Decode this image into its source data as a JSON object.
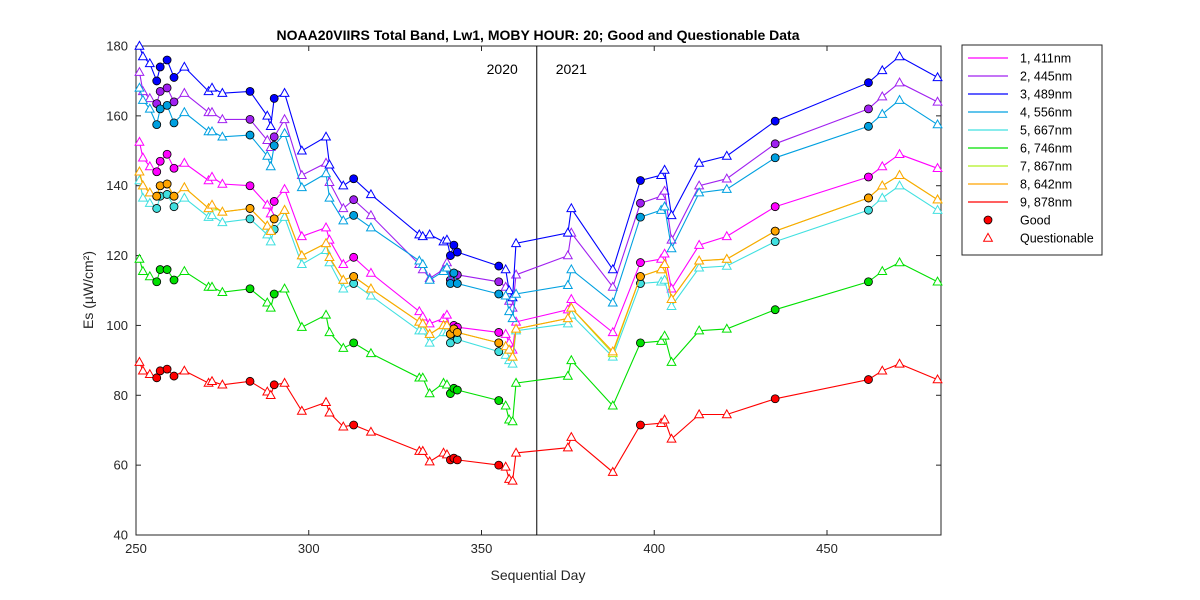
{
  "chart_data": {
    "type": "line",
    "title": "NOAA20VIIRS Total Band,  Lw1, MOBY HOUR: 20;  Good and Questionable Data",
    "xlabel": "Sequential Day",
    "ylabel": "Es (µW/cm²)",
    "xlim": [
      250,
      483
    ],
    "ylim": [
      40,
      180
    ],
    "xticks": [
      250,
      300,
      350,
      400,
      450
    ],
    "yticks": [
      40,
      60,
      80,
      100,
      120,
      140,
      160,
      180
    ],
    "grid": false,
    "legend_position": "outside-top-right",
    "annotations": [
      {
        "text": "2020",
        "x": 356,
        "y": 172
      },
      {
        "text": "2021",
        "x": 376,
        "y": 172
      }
    ],
    "year_divider_x": 366,
    "marker_legend": [
      {
        "label": "Good",
        "marker": "circle"
      },
      {
        "label": "Questionable",
        "marker": "triangle"
      }
    ],
    "flags": [
      0,
      0,
      0,
      1,
      1,
      1,
      1,
      0,
      0,
      0,
      0,
      1,
      0,
      0,
      1,
      0,
      0,
      0,
      0,
      0,
      1,
      0,
      0,
      0,
      0,
      0,
      0,
      1,
      1,
      1,
      1,
      0,
      0,
      0,
      0,
      0,
      0,
      0,
      1,
      0,
      0,
      0,
      0,
      0,
      1,
      1,
      0,
      0,
      0
    ],
    "series": [
      {
        "name": "1, 411nm",
        "color": "#ff00ff",
        "x": [
          251,
          252,
          254,
          256,
          257,
          259,
          261,
          264,
          271,
          272,
          275,
          283,
          288,
          289,
          290,
          293,
          298,
          305,
          306,
          310,
          313,
          318,
          332,
          333,
          335,
          339,
          340,
          341,
          342,
          343,
          355,
          357,
          358,
          359,
          360,
          375,
          376,
          388,
          396,
          402,
          403,
          405,
          413,
          421,
          435,
          462,
          466,
          471,
          482
        ],
        "y": [
          152.5,
          148,
          145.5,
          144,
          147,
          149,
          145,
          146.5,
          141.5,
          142.5,
          140.5,
          140,
          134.5,
          132,
          135.5,
          139,
          125.5,
          128,
          124.5,
          117.5,
          119.5,
          115,
          104,
          102.5,
          100.5,
          102,
          103,
          98.5,
          100,
          99.5,
          98,
          97.5,
          95,
          93,
          101,
          104.5,
          107.5,
          98,
          118,
          119,
          120.5,
          110.5,
          123,
          125.5,
          134,
          142.5,
          145.5,
          149,
          145
        ]
      },
      {
        "name": "2, 445nm",
        "color": "#a020f0",
        "x": [
          251,
          252,
          254,
          256,
          257,
          259,
          261,
          264,
          271,
          272,
          275,
          283,
          288,
          289,
          290,
          293,
          298,
          305,
          306,
          310,
          313,
          318,
          332,
          333,
          335,
          339,
          340,
          341,
          342,
          343,
          355,
          357,
          358,
          359,
          360,
          375,
          376,
          388,
          396,
          402,
          403,
          405,
          413,
          421,
          435,
          462,
          466,
          471,
          482
        ],
        "y": [
          172.5,
          167,
          165,
          163.5,
          167,
          168,
          164,
          166.5,
          161,
          161,
          159,
          159,
          153,
          151,
          154,
          159,
          143,
          146.5,
          141,
          133.5,
          136,
          131.5,
          117.5,
          116,
          113.5,
          116,
          118,
          113,
          115,
          114.5,
          112.5,
          111,
          107,
          105,
          114.5,
          120,
          126.5,
          111,
          135,
          137,
          138.5,
          124.5,
          140,
          142,
          152,
          162,
          165.5,
          169.5,
          164
        ]
      },
      {
        "name": "3, 489nm",
        "color": "#0000ff",
        "x": [
          251,
          252,
          254,
          256,
          257,
          259,
          261,
          264,
          271,
          272,
          275,
          283,
          288,
          289,
          290,
          293,
          298,
          305,
          306,
          310,
          313,
          318,
          332,
          333,
          335,
          339,
          340,
          341,
          342,
          343,
          355,
          357,
          358,
          359,
          360,
          375,
          376,
          388,
          396,
          402,
          403,
          405,
          413,
          421,
          435,
          462,
          466,
          471,
          482
        ],
        "y": [
          180,
          177,
          175,
          170,
          174,
          176,
          171,
          174,
          167,
          168,
          166.5,
          167,
          160,
          157,
          165,
          166.5,
          150,
          154,
          146,
          140,
          142,
          137.5,
          126,
          125.5,
          126,
          124,
          124.5,
          120,
          123,
          121,
          117,
          116,
          110,
          108,
          123.5,
          126.5,
          133.5,
          116,
          141.5,
          143,
          144.5,
          131.5,
          146.5,
          148.5,
          158.5,
          169.5,
          173,
          177,
          171
        ]
      },
      {
        "name": "4, 556nm",
        "color": "#00a0e0",
        "x": [
          251,
          252,
          254,
          256,
          257,
          259,
          261,
          264,
          271,
          272,
          275,
          283,
          288,
          289,
          290,
          293,
          298,
          305,
          306,
          310,
          313,
          318,
          332,
          333,
          335,
          339,
          340,
          341,
          342,
          343,
          355,
          357,
          358,
          359,
          360,
          375,
          376,
          388,
          396,
          402,
          403,
          405,
          413,
          421,
          435,
          462,
          466,
          471,
          482
        ],
        "y": [
          168,
          164.5,
          162,
          157.5,
          162,
          163,
          158,
          161,
          155.5,
          155.5,
          154,
          154.5,
          148.5,
          145.5,
          151.5,
          155,
          139.5,
          143.5,
          136.5,
          130,
          131.5,
          128,
          118.5,
          117.5,
          113,
          115.5,
          116.5,
          112,
          115,
          112,
          109,
          108.5,
          104,
          102,
          109,
          111.5,
          116,
          106.5,
          131,
          133,
          134,
          122,
          138,
          139,
          148,
          157,
          160.5,
          164.5,
          157.5
        ]
      },
      {
        "name": "5, 667nm",
        "color": "#40e0e0",
        "x": [
          251,
          252,
          254,
          256,
          257,
          259,
          261,
          264,
          271,
          272,
          275,
          283,
          288,
          289,
          290,
          293,
          298,
          305,
          306,
          310,
          313,
          318,
          332,
          333,
          335,
          339,
          340,
          341,
          342,
          343,
          355,
          357,
          358,
          359,
          360,
          375,
          376,
          388,
          396,
          402,
          403,
          405,
          413,
          421,
          435,
          462,
          466,
          471,
          482
        ],
        "y": [
          141.5,
          136.5,
          135,
          133.5,
          137,
          137.5,
          134,
          136.5,
          131,
          131.5,
          129.5,
          130.5,
          126,
          124,
          127.5,
          131,
          117.5,
          121.5,
          118,
          110.5,
          112,
          108.5,
          98.5,
          98.5,
          95,
          98,
          98,
          95,
          97.5,
          96,
          92.5,
          91.5,
          90,
          89,
          98.5,
          100.5,
          103,
          91,
          112,
          112.5,
          113,
          105.5,
          116.5,
          117,
          124,
          133,
          136.5,
          140,
          133
        ]
      },
      {
        "name": "6, 746nm",
        "color": "#00e000",
        "x": [
          251,
          252,
          254,
          256,
          257,
          259,
          261,
          264,
          271,
          272,
          275,
          283,
          288,
          289,
          290,
          293,
          298,
          305,
          306,
          310,
          313,
          318,
          332,
          333,
          335,
          339,
          340,
          341,
          342,
          343,
          355,
          357,
          358,
          359,
          360,
          375,
          376,
          388,
          396,
          402,
          403,
          405,
          413,
          421,
          435,
          462,
          466,
          471,
          482
        ],
        "y": [
          119,
          115.5,
          114,
          112.5,
          116,
          116,
          113,
          115.5,
          111,
          111,
          109.5,
          110.5,
          106.5,
          105,
          109,
          110.5,
          99.5,
          103,
          98,
          93.5,
          95,
          92,
          85,
          85,
          80.5,
          83.5,
          83,
          80.5,
          82,
          81.5,
          78.5,
          77,
          73,
          72.5,
          83.5,
          85.5,
          90,
          77,
          95,
          95.5,
          97,
          89.5,
          98.5,
          99,
          104.5,
          112.5,
          115.5,
          118,
          112.5
        ]
      },
      {
        "name": "7, 867nm",
        "color": "#b0f020",
        "x": [
          251,
          252,
          254,
          256,
          257,
          259,
          261,
          264,
          271,
          272,
          275,
          283,
          288,
          289,
          290,
          293,
          298,
          305,
          306,
          310,
          313,
          318,
          332,
          333,
          335,
          339,
          340,
          341,
          342,
          343,
          355,
          357,
          358,
          359,
          360,
          375,
          376,
          388,
          396,
          402,
          403,
          405,
          413,
          421,
          435,
          462,
          466,
          471,
          482
        ],
        "y": [
          144,
          140,
          138,
          137,
          140,
          140.5,
          137,
          139.5,
          133.5,
          134,
          132.5,
          133.5,
          128.5,
          127,
          130.5,
          133,
          120,
          123.5,
          119.5,
          113,
          114,
          110.5,
          101,
          100.5,
          97.5,
          100,
          100,
          97.5,
          99,
          98,
          95,
          94,
          93,
          91,
          99,
          102,
          105,
          92,
          114,
          116,
          117.5,
          107.5,
          118.5,
          119,
          127,
          136.5,
          140,
          143,
          136
        ]
      },
      {
        "name": "8, 642nm",
        "color": "#ffa500",
        "x": [
          251,
          252,
          254,
          256,
          257,
          259,
          261,
          264,
          271,
          272,
          275,
          283,
          288,
          289,
          290,
          293,
          298,
          305,
          306,
          310,
          313,
          318,
          332,
          333,
          335,
          339,
          340,
          341,
          342,
          343,
          355,
          357,
          358,
          359,
          360,
          375,
          376,
          388,
          396,
          402,
          403,
          405,
          413,
          421,
          435,
          462,
          466,
          471,
          482
        ],
        "y": [
          144,
          140,
          138,
          137,
          140,
          140.5,
          137,
          139.5,
          133.5,
          134.5,
          132.5,
          133.5,
          128.5,
          127,
          130.5,
          133,
          120,
          123.5,
          119.5,
          113,
          114,
          110.5,
          101,
          100.5,
          97.5,
          100,
          100,
          97.5,
          99,
          98,
          95,
          94,
          93,
          91,
          99,
          102,
          105,
          92.5,
          114,
          116,
          117.5,
          107.5,
          118.5,
          119,
          127,
          136.5,
          140,
          143,
          136
        ]
      },
      {
        "name": "9, 878nm",
        "color": "#ff0000",
        "x": [
          251,
          252,
          254,
          256,
          257,
          259,
          261,
          264,
          271,
          272,
          275,
          283,
          288,
          289,
          290,
          293,
          298,
          305,
          306,
          310,
          313,
          318,
          332,
          333,
          335,
          339,
          340,
          341,
          342,
          343,
          355,
          357,
          358,
          359,
          360,
          375,
          376,
          388,
          396,
          402,
          403,
          405,
          413,
          421,
          435,
          462,
          466,
          471,
          482
        ],
        "y": [
          89.5,
          87,
          86,
          85,
          87,
          87.5,
          85.5,
          87,
          83.5,
          84,
          83,
          84,
          81,
          80,
          83,
          83.5,
          75.5,
          78,
          75,
          71,
          71.5,
          69.5,
          64,
          64,
          61,
          63.5,
          63,
          61.5,
          62,
          61.5,
          60,
          59.5,
          56,
          55.5,
          63.5,
          65,
          68,
          58,
          71.5,
          72,
          73,
          67.5,
          74.5,
          74.5,
          79,
          84.5,
          87,
          89,
          84.5
        ]
      }
    ]
  }
}
